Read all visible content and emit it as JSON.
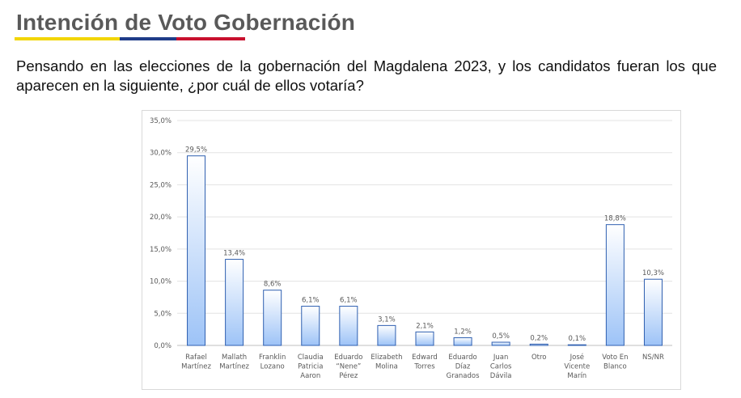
{
  "header": {
    "title": "Intención de Voto Gobernación",
    "flag_colors": [
      "#f2d500",
      "#1f3c88",
      "#c8102e"
    ]
  },
  "question": {
    "text": "Pensando en las elecciones de la gobernación del Magdalena 2023, y los candidatos fueran los que aparecen en la siguiente, ¿por cuál de ellos votaría?"
  },
  "chart_data": {
    "type": "bar",
    "title": "",
    "xlabel": "",
    "ylabel": "",
    "ylim": [
      0,
      35
    ],
    "yticks": [
      "0,0%",
      "5,0%",
      "10,0%",
      "15,0%",
      "20,0%",
      "25,0%",
      "30,0%",
      "35,0%"
    ],
    "grid": true,
    "categories": [
      [
        "Rafael",
        "Martínez"
      ],
      [
        "Mallath",
        "Martínez"
      ],
      [
        "Franklin",
        "Lozano"
      ],
      [
        "Claudia",
        "Patricia",
        "Aaron"
      ],
      [
        "Eduardo",
        "“Nene”",
        "Pérez"
      ],
      [
        "Elizabeth",
        "Molina"
      ],
      [
        "Edward",
        "Torres"
      ],
      [
        "Eduardo",
        "Díaz",
        "Granados"
      ],
      [
        "Juan",
        "Carlos",
        "Dávila"
      ],
      [
        "Otro"
      ],
      [
        "José",
        "Vicente",
        "Marín"
      ],
      [
        "Voto En",
        "Blanco"
      ],
      [
        "NS/NR"
      ]
    ],
    "values": [
      29.5,
      13.4,
      8.6,
      6.1,
      6.1,
      3.1,
      2.1,
      1.2,
      0.5,
      0.2,
      0.1,
      18.8,
      10.3
    ],
    "value_labels": [
      "29,5%",
      "13,4%",
      "8,6%",
      "6,1%",
      "6,1%",
      "3,1%",
      "2,1%",
      "1,2%",
      "0,5%",
      "0,2%",
      "0,1%",
      "18,8%",
      "10,3%"
    ],
    "bar_color_top": "#ffffff",
    "bar_color_bottom": "#9dc3f7",
    "bar_border": "#2e5fb0"
  }
}
